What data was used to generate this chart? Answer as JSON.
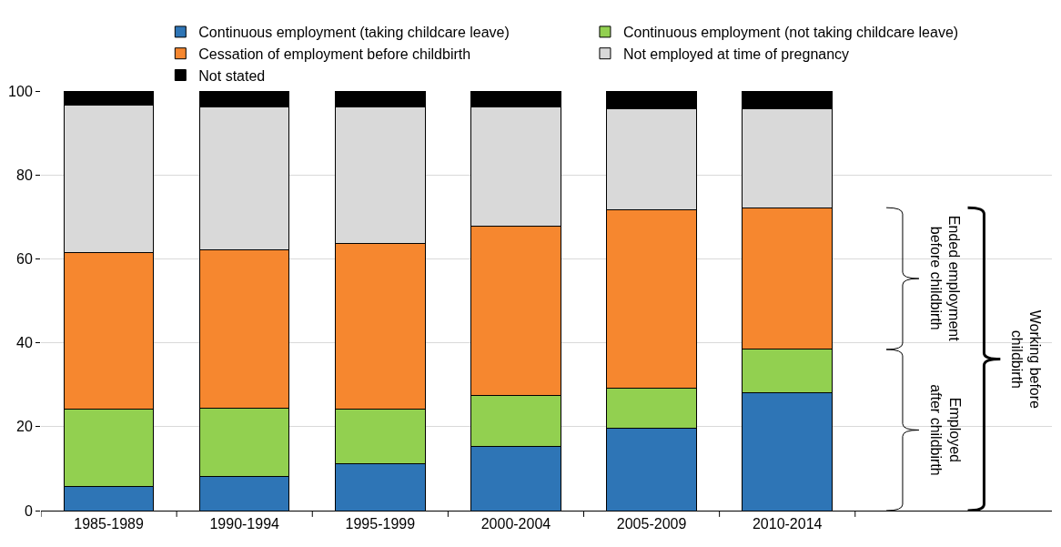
{
  "chart_data": {
    "type": "bar",
    "stacked": true,
    "categories": [
      "1985-1989",
      "1990-1994",
      "1995-1999",
      "2000-2004",
      "2005-2009",
      "2010-2014"
    ],
    "series": [
      {
        "name": "Continuous employment (taking childcare leave)",
        "color": "#2e75b6",
        "values": [
          5.8,
          8.2,
          11.2,
          15.3,
          19.6,
          28.2
        ]
      },
      {
        "name": "Continuous employment (not taking childcare leave)",
        "color": "#92d050",
        "values": [
          18.3,
          16.1,
          12.9,
          12.1,
          9.5,
          10.2
        ]
      },
      {
        "name": "Cessation of employment before childbirth",
        "color": "#f6872f",
        "values": [
          37.3,
          37.8,
          39.5,
          40.3,
          42.7,
          33.8
        ]
      },
      {
        "name": "Not employed at time of pregnancy",
        "color": "#d9d9d9",
        "values": [
          35.2,
          34.2,
          32.5,
          28.4,
          23.9,
          23.5
        ]
      },
      {
        "name": "Not stated",
        "color": "#000000",
        "values": [
          3.4,
          3.7,
          3.9,
          3.9,
          4.3,
          4.3
        ]
      }
    ],
    "ylim": [
      0,
      100
    ],
    "yticks": [
      0,
      20,
      40,
      60,
      80,
      100
    ],
    "grid": "y",
    "legend": "top",
    "annotations": [
      "Employed\nafter childbirth",
      "Ended employment\nbefore childbirth",
      "Working before\nchildbirth"
    ]
  }
}
